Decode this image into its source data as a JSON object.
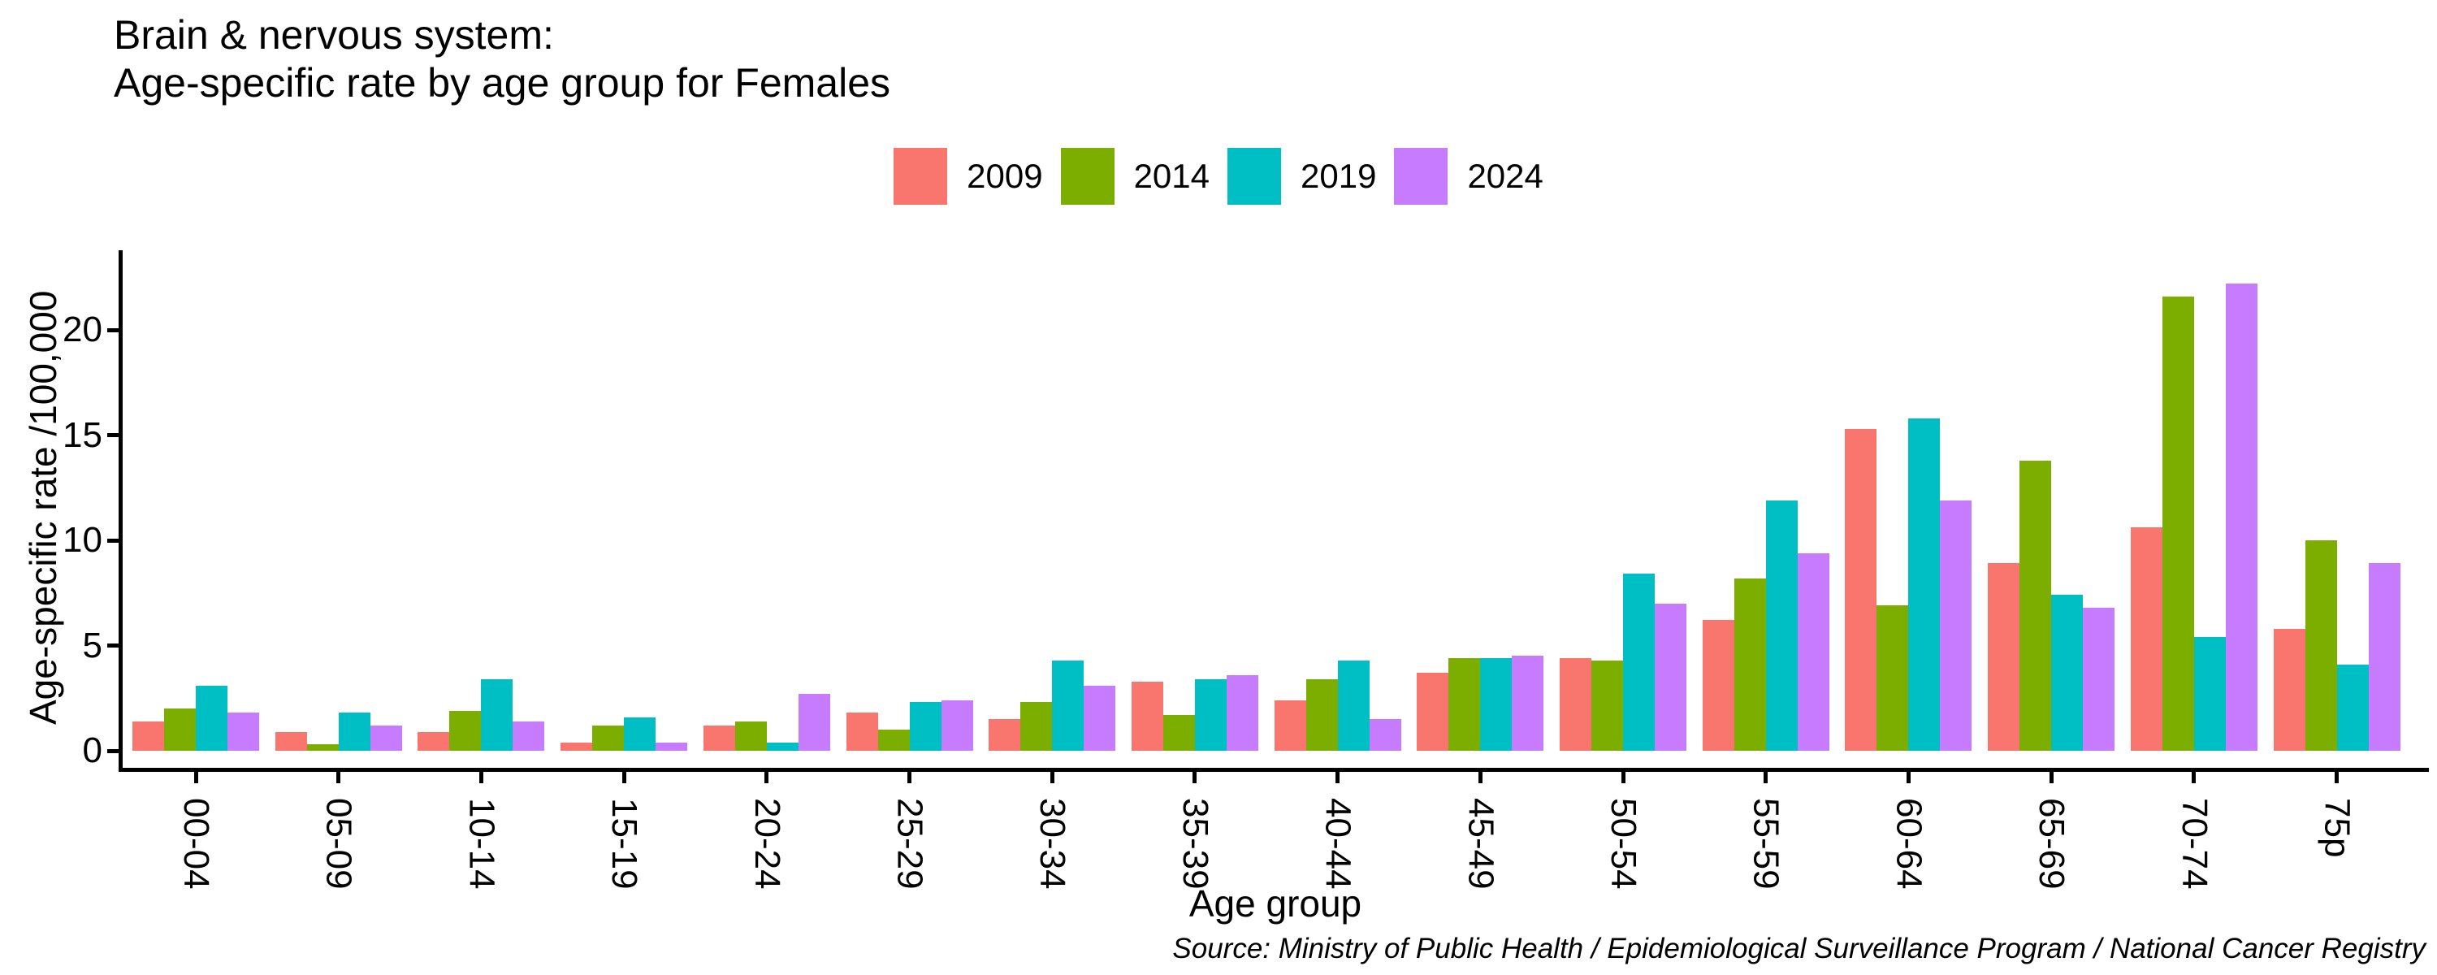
{
  "title": {
    "line1": "Brain & nervous system:",
    "line2": "Age-specific rate by age group for Females"
  },
  "axes": {
    "x_label": "Age group",
    "y_label": "Age-specific rate /100,000",
    "y_ticks": [
      0,
      5,
      10,
      15,
      20
    ]
  },
  "source": "Source: Ministry of Public Health / Epidemiological Surveillance Program / National Cancer Registry",
  "chart_data": {
    "type": "bar",
    "title": "Brain & nervous system: Age-specific rate by age group for Females",
    "categories": [
      "00-04",
      "05-09",
      "10-14",
      "15-19",
      "20-24",
      "25-29",
      "30-34",
      "35-39",
      "40-44",
      "45-49",
      "50-54",
      "55-59",
      "60-64",
      "65-69",
      "70-74",
      "75p"
    ],
    "series": [
      {
        "name": "2009",
        "color": "#F8766D",
        "values": [
          1.4,
          0.9,
          0.9,
          0.4,
          1.2,
          1.8,
          1.5,
          3.3,
          2.4,
          3.7,
          4.4,
          6.2,
          15.3,
          8.9,
          10.6,
          5.8
        ]
      },
      {
        "name": "2014",
        "color": "#7CAE00",
        "values": [
          2.0,
          0.3,
          1.9,
          1.2,
          1.4,
          1.0,
          2.3,
          1.7,
          3.4,
          4.4,
          4.3,
          8.2,
          6.9,
          13.8,
          21.6,
          10.0
        ]
      },
      {
        "name": "2019",
        "color": "#00BFC4",
        "values": [
          3.1,
          1.8,
          3.4,
          1.6,
          0.4,
          2.3,
          4.3,
          3.4,
          4.3,
          4.4,
          8.4,
          11.9,
          15.8,
          7.4,
          5.4,
          4.1
        ]
      },
      {
        "name": "2024",
        "color": "#C77CFF",
        "values": [
          1.8,
          1.2,
          1.4,
          0.4,
          2.7,
          2.4,
          3.1,
          3.6,
          1.5,
          4.5,
          7.0,
          9.4,
          11.9,
          6.8,
          22.2,
          8.9
        ]
      }
    ],
    "xlabel": "Age group",
    "ylabel": "Age-specific rate /100,000",
    "ylim": [
      0,
      23.7
    ],
    "grid": false,
    "legend_position": "top-center"
  }
}
